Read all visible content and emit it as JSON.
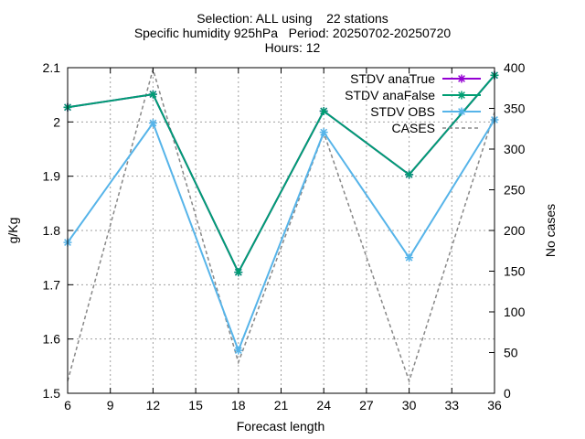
{
  "title_lines": [
    "Selection: ALL using    22 stations",
    "Specific humidity 925hPa   Period: 20250702-20250720",
    "Hours: 12"
  ],
  "chart_data": {
    "type": "line",
    "xlabel": "Forecast length",
    "ylabel": "g/Kg",
    "y2label": "No cases",
    "x": [
      6,
      12,
      18,
      24,
      30,
      36
    ],
    "xticks": [
      6,
      9,
      12,
      15,
      18,
      21,
      24,
      27,
      30,
      33,
      36
    ],
    "xlim": [
      6,
      36
    ],
    "ylim": [
      1.5,
      2.1
    ],
    "yticks": [
      1.5,
      1.6,
      1.7,
      1.8,
      1.9,
      2.0,
      2.1
    ],
    "ytick_labels": [
      "1.5",
      "1.6",
      "1.7",
      "1.8",
      "1.9",
      "2",
      "2.1"
    ],
    "y2lim": [
      0,
      400
    ],
    "y2ticks": [
      0,
      50,
      100,
      150,
      200,
      250,
      300,
      350,
      400
    ],
    "grid": true,
    "legend_position": "top-right",
    "series": [
      {
        "name": "STDV anaTrue",
        "axis": "y",
        "color": "#9400d3",
        "style": "solid",
        "marker": "star",
        "values": [
          2.027,
          2.051,
          1.723,
          2.02,
          1.903,
          2.086
        ]
      },
      {
        "name": "STDV anaFalse",
        "axis": "y",
        "color": "#009e73",
        "style": "solid",
        "marker": "star",
        "values": [
          2.027,
          2.051,
          1.723,
          2.02,
          1.903,
          2.086
        ]
      },
      {
        "name": "STDV OBS",
        "axis": "y",
        "color": "#56b4e9",
        "style": "solid",
        "marker": "star",
        "values": [
          1.778,
          1.998,
          1.579,
          1.981,
          1.75,
          2.004
        ]
      },
      {
        "name": "CASES",
        "axis": "y2",
        "color": "#888888",
        "style": "dashed",
        "marker": "none",
        "values": [
          15,
          398,
          38,
          320,
          15,
          345
        ]
      }
    ]
  }
}
